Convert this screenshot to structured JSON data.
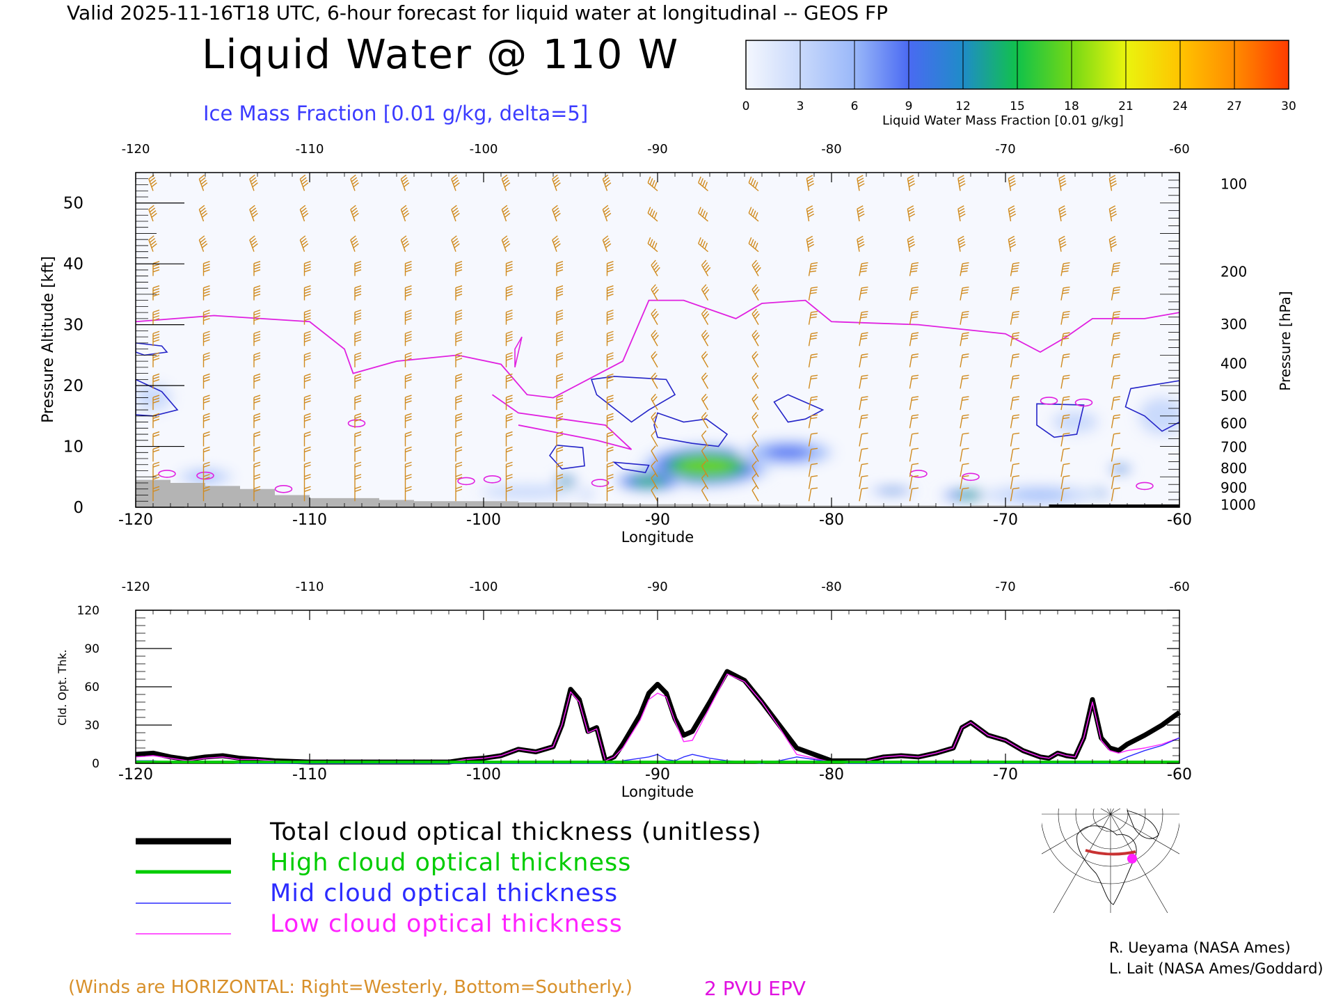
{
  "header": "Valid 2025-11-16T18 UTC, 6-hour forecast for liquid water at longitudinal -- GEOS FP",
  "title": "Liquid Water @ 110 W",
  "ice_subtitle": "Ice Mass Fraction [0.01 g/kg, delta=5]",
  "colorbar": {
    "label": "Liquid Water Mass Fraction [0.01 g/kg]",
    "ticks": [
      "0",
      "3",
      "6",
      "9",
      "12",
      "15",
      "18",
      "21",
      "24",
      "27",
      "30"
    ],
    "colors": [
      "#f4f7fe",
      "#c9d9fb",
      "#9ab8f9",
      "#4a6af2",
      "#1f8cc8",
      "#11c24a",
      "#74d815",
      "#eaf40e",
      "#ffc400",
      "#ff8c00",
      "#ff3c00"
    ]
  },
  "winds_note": "(Winds are HORIZONTAL: Right=Westerly, Bottom=Southerly.)",
  "pvu_label": "2 PVU EPV",
  "credits": [
    "R. Ueyama (NASA Ames)",
    "L. Lait (NASA Ames/Goddard)"
  ],
  "legend": [
    {
      "label": "Total cloud optical thickness (unitless)",
      "color": "#000000"
    },
    {
      "label": "High cloud optical thickness",
      "color": "#00cc00"
    },
    {
      "label": "Mid cloud optical thickness",
      "color": "#2b2bff"
    },
    {
      "label": "Low cloud optical thickness",
      "color": "#ff22ff"
    }
  ],
  "chart_data": [
    {
      "type": "heatmap",
      "xlabel": "Longitude",
      "ylabel": "Pressure Altitude [kft]",
      "ylabel_right": "Pressure [hPa]",
      "xlim": [
        -120,
        -60
      ],
      "ylim": [
        0,
        55
      ],
      "x_ticks": [
        "-120",
        "-110",
        "-100",
        "-90",
        "-80",
        "-70",
        "-60"
      ],
      "y_ticks": [
        "0",
        "10",
        "20",
        "30",
        "40",
        "50"
      ],
      "pressure_ticks": [
        {
          "label": "100",
          "alt": 53.1
        },
        {
          "label": "200",
          "alt": 38.7
        },
        {
          "label": "300",
          "alt": 30.1
        },
        {
          "label": "400",
          "alt": 23.6
        },
        {
          "label": "500",
          "alt": 18.3
        },
        {
          "label": "600",
          "alt": 13.8
        },
        {
          "label": "700",
          "alt": 9.9
        },
        {
          "label": "800",
          "alt": 6.4
        },
        {
          "label": "900",
          "alt": 3.2
        },
        {
          "label": "1000",
          "alt": 0.4
        }
      ],
      "liquid_water_blobs": [
        {
          "lon": -87.2,
          "alt": 6.8,
          "lon_halfwidth": 3.2,
          "alt_halfwidth": 3.0,
          "peak": 19
        },
        {
          "lon": -90.5,
          "alt": 4.3,
          "lon_halfwidth": 1.7,
          "alt_halfwidth": 1.4,
          "peak": 17
        },
        {
          "lon": -95.3,
          "alt": 3.9,
          "lon_halfwidth": 0.6,
          "alt_halfwidth": 1.2,
          "peak": 16
        },
        {
          "lon": -94.4,
          "alt": 2.3,
          "lon_halfwidth": 0.6,
          "alt_halfwidth": 0.7,
          "peak": 13
        },
        {
          "lon": -72.0,
          "alt": 2.0,
          "lon_halfwidth": 1.5,
          "alt_halfwidth": 0.8,
          "peak": 15
        },
        {
          "lon": -76.5,
          "alt": 2.7,
          "lon_halfwidth": 1.2,
          "alt_halfwidth": 0.5,
          "peak": 12
        },
        {
          "lon": -64.9,
          "alt": 2.2,
          "lon_halfwidth": 0.7,
          "alt_halfwidth": 0.8,
          "peak": 16
        },
        {
          "lon": -63.4,
          "alt": 6.3,
          "lon_halfwidth": 0.6,
          "alt_halfwidth": 0.5,
          "peak": 14
        },
        {
          "lon": -82.5,
          "alt": 9.0,
          "lon_halfwidth": 2.5,
          "alt_halfwidth": 2.0,
          "peak": 9
        },
        {
          "lon": -61.0,
          "alt": 15.0,
          "lon_halfwidth": 1.5,
          "alt_halfwidth": 3.5,
          "peak": 4
        },
        {
          "lon": -119.0,
          "alt": 18.0,
          "lon_halfwidth": 1.2,
          "alt_halfwidth": 2.5,
          "peak": 4
        },
        {
          "lon": -68.0,
          "alt": 2.0,
          "lon_halfwidth": 3.0,
          "alt_halfwidth": 1.5,
          "peak": 5
        },
        {
          "lon": -97.5,
          "alt": 2.5,
          "lon_halfwidth": 3.0,
          "alt_halfwidth": 1.3,
          "peak": 4
        },
        {
          "lon": -116.0,
          "alt": 5.0,
          "lon_halfwidth": 1.5,
          "alt_halfwidth": 1.3,
          "peak": 5
        },
        {
          "lon": -66.0,
          "alt": 14.0,
          "lon_halfwidth": 1.5,
          "alt_halfwidth": 2.0,
          "peak": 3
        }
      ],
      "ice_contours": [
        [
          [
            -120,
            27
          ],
          [
            -118.5,
            26.5
          ],
          [
            -118.2,
            25.5
          ],
          [
            -119.5,
            25
          ],
          [
            -120,
            25.5
          ]
        ],
        [
          [
            -120,
            21
          ],
          [
            -118.5,
            19
          ],
          [
            -117.6,
            16
          ],
          [
            -119,
            15
          ],
          [
            -120,
            15.2
          ]
        ],
        [
          [
            -92.5,
            21.5
          ],
          [
            -89.5,
            21
          ],
          [
            -89,
            18.5
          ],
          [
            -90.5,
            16
          ],
          [
            -91.5,
            14
          ],
          [
            -93.5,
            18.5
          ],
          [
            -93.8,
            21
          ]
        ],
        [
          [
            -90,
            15.5
          ],
          [
            -88.5,
            14
          ],
          [
            -87.2,
            14.5
          ],
          [
            -86,
            12
          ],
          [
            -86.5,
            10
          ],
          [
            -88,
            10.5
          ],
          [
            -90,
            11.5
          ],
          [
            -90.2,
            13.5
          ]
        ],
        [
          [
            -95.8,
            10.2
          ],
          [
            -94.3,
            9.8
          ],
          [
            -94.2,
            6.8
          ],
          [
            -95.5,
            6.3
          ],
          [
            -96.2,
            8.5
          ]
        ],
        [
          [
            -92.5,
            7.4
          ],
          [
            -90.5,
            6.9
          ],
          [
            -90.7,
            5.7
          ],
          [
            -92,
            6.3
          ]
        ],
        [
          [
            -82.5,
            18.5
          ],
          [
            -80.5,
            16
          ],
          [
            -81.5,
            14.5
          ],
          [
            -82.5,
            14
          ],
          [
            -83.3,
            17.3
          ]
        ],
        [
          [
            -68.2,
            17
          ],
          [
            -65.5,
            16.8
          ],
          [
            -65.9,
            12
          ],
          [
            -67.2,
            11.5
          ],
          [
            -68.2,
            13.5
          ]
        ],
        [
          [
            -62.8,
            19.5
          ],
          [
            -60,
            20.8
          ],
          [
            -60,
            14
          ],
          [
            -61,
            12.5
          ],
          [
            -62,
            15
          ],
          [
            -63.1,
            16.5
          ]
        ]
      ],
      "pvu_line": [
        [
          -120,
          30.5
        ],
        [
          -115.5,
          31.5
        ],
        [
          -110,
          30.5
        ],
        [
          -108,
          26
        ],
        [
          -107.5,
          22
        ],
        [
          -105,
          24
        ],
        [
          -101.5,
          25
        ],
        [
          -99,
          23.5
        ],
        [
          -97.5,
          18.5
        ],
        [
          -96,
          18
        ],
        [
          -92,
          24
        ],
        [
          -90.5,
          34
        ],
        [
          -88.5,
          34
        ],
        [
          -85.5,
          31
        ],
        [
          -84,
          33.5
        ],
        [
          -81.5,
          34
        ],
        [
          -80,
          30.5
        ],
        [
          -75,
          30
        ],
        [
          -70,
          28.5
        ],
        [
          -68,
          25.5
        ],
        [
          -66.5,
          28
        ],
        [
          -65,
          31
        ],
        [
          -62,
          31
        ],
        [
          -60,
          32
        ]
      ],
      "pvu_fold": [
        [
          -98,
          13.5
        ],
        [
          -93.5,
          11
        ],
        [
          -91.5,
          9.5
        ],
        [
          -93,
          13.5
        ],
        [
          -95.5,
          14.5
        ],
        [
          -98,
          15.5
        ],
        [
          -99.5,
          18.5
        ]
      ],
      "terrain_alt": [
        4.5,
        4.0,
        3.5,
        3.0,
        2.0,
        1.5,
        1.5,
        1.2,
        1.0,
        1.0,
        1.0,
        0.8,
        0.8,
        0.6,
        0.5,
        0.5,
        0.5,
        0.4,
        0.4,
        0.3,
        0.3,
        0.3,
        0.3,
        0.2,
        0.3,
        0.3,
        0.2,
        0.2,
        0.2,
        0.5,
        0.5
      ]
    },
    {
      "type": "line",
      "xlabel": "Longitude",
      "ylabel": "Cld. Opt. Thk.",
      "xlim": [
        -120,
        -60
      ],
      "ylim": [
        0,
        120
      ],
      "x_ticks": [
        "-120",
        "-110",
        "-100",
        "-90",
        "-80",
        "-70",
        "-60"
      ],
      "y_ticks": [
        "0",
        "30",
        "60",
        "90",
        "120"
      ],
      "x": [
        -120,
        -119,
        -118,
        -117,
        -116,
        -115,
        -114,
        -113,
        -112,
        -110,
        -108,
        -106,
        -104,
        -102,
        -101,
        -100,
        -99,
        -98,
        -97,
        -96,
        -95.5,
        -95,
        -94.5,
        -94,
        -93.5,
        -93,
        -92.5,
        -92,
        -91,
        -90.5,
        -90,
        -89.5,
        -89,
        -88.5,
        -88,
        -87,
        -86,
        -85,
        -84,
        -83,
        -82,
        -81,
        -80,
        -79,
        -78,
        -77,
        -76,
        -75,
        -74,
        -73,
        -72.5,
        -72,
        -71,
        -70,
        -69,
        -68,
        -67.5,
        -67,
        -66.5,
        -66,
        -65.5,
        -65,
        -64.5,
        -64,
        -63.5,
        -63,
        -62,
        -61,
        -60
      ],
      "series": [
        {
          "name": "Total cloud optical thickness (unitless)",
          "values": [
            7,
            8,
            5,
            3,
            5,
            6,
            4,
            3,
            2,
            1,
            1,
            1,
            1,
            1,
            3,
            4,
            6,
            11,
            9,
            13,
            30,
            58,
            50,
            25,
            28,
            2,
            5,
            15,
            38,
            55,
            62,
            55,
            35,
            22,
            25,
            48,
            72,
            65,
            48,
            30,
            12,
            7,
            2,
            2,
            2,
            5,
            6,
            5,
            8,
            12,
            28,
            32,
            22,
            18,
            10,
            5,
            4,
            8,
            6,
            5,
            20,
            50,
            20,
            12,
            10,
            15,
            22,
            30,
            40
          ]
        },
        {
          "name": "High cloud optical thickness",
          "values": [
            1,
            1,
            1,
            1,
            1,
            1,
            1,
            1,
            1,
            1,
            1,
            1,
            1,
            1,
            1,
            1,
            1,
            1,
            1,
            1,
            1,
            1,
            1,
            1,
            1,
            1,
            1,
            1,
            1,
            1,
            1,
            1,
            1,
            1,
            1,
            1,
            1,
            1,
            1,
            1,
            1,
            1,
            1,
            1,
            1,
            1,
            1,
            1,
            1,
            1,
            1,
            1,
            1,
            1,
            1,
            1,
            1,
            1,
            1,
            1,
            1,
            1,
            1,
            1,
            1,
            1,
            1,
            1,
            1
          ]
        },
        {
          "name": "Mid cloud optical thickness",
          "values": [
            2,
            2,
            1,
            1,
            1,
            1,
            0,
            0,
            0,
            0,
            0,
            0,
            0,
            0,
            0,
            0,
            0,
            0,
            0,
            0,
            0,
            0,
            0,
            0,
            0,
            0,
            0,
            2,
            4,
            5,
            7,
            3,
            2,
            5,
            7,
            4,
            2,
            1,
            0,
            2,
            5,
            3,
            1,
            0,
            0,
            0,
            0,
            0,
            0,
            0,
            0,
            0,
            0,
            0,
            0,
            0,
            0,
            0,
            0,
            0,
            0,
            0,
            0,
            0,
            2,
            5,
            10,
            14,
            20
          ]
        },
        {
          "name": "Low cloud optical thickness",
          "values": [
            5,
            6,
            4,
            2,
            4,
            5,
            3,
            3,
            2,
            1,
            1,
            1,
            1,
            1,
            3,
            4,
            6,
            11,
            9,
            13,
            30,
            56,
            48,
            24,
            27,
            2,
            5,
            12,
            34,
            50,
            55,
            52,
            33,
            17,
            18,
            44,
            70,
            64,
            48,
            28,
            7,
            4,
            1,
            2,
            2,
            5,
            6,
            5,
            8,
            12,
            28,
            32,
            22,
            18,
            10,
            5,
            4,
            8,
            6,
            5,
            20,
            48,
            18,
            10,
            8,
            10,
            12,
            15,
            20
          ]
        }
      ]
    }
  ]
}
